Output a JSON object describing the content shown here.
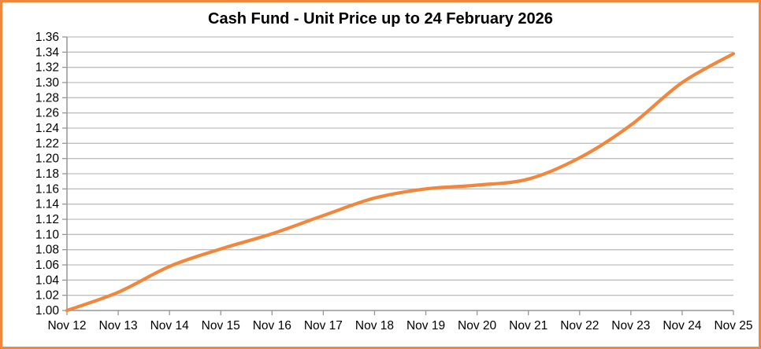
{
  "frame": {
    "border_color": "#F0873C",
    "background": "#FFFFFF"
  },
  "chart_data": {
    "type": "line",
    "title": "Cash Fund - Unit Price up to 24 February 2026",
    "categories": [
      "Nov 12",
      "Nov 13",
      "Nov 14",
      "Nov 15",
      "Nov 16",
      "Nov 17",
      "Nov 18",
      "Nov 19",
      "Nov 20",
      "Nov 21",
      "Nov 22",
      "Nov 23",
      "Nov 24",
      "Nov 25"
    ],
    "series": [
      {
        "name": "Unit Price",
        "color": "#F0873C",
        "values": [
          1.0,
          1.024,
          1.058,
          1.081,
          1.101,
          1.125,
          1.148,
          1.16,
          1.165,
          1.173,
          1.201,
          1.244,
          1.3,
          1.338
        ]
      }
    ],
    "xlabel": "",
    "ylabel": "",
    "ylim": [
      1.0,
      1.36
    ],
    "ytick_step": 0.02,
    "ytick_decimals": 2,
    "grid": true,
    "smooth": true,
    "legend": "none",
    "gridline_color": "#BFBFBF",
    "axis_color": "#969696",
    "tick_label_color": "#000000"
  }
}
